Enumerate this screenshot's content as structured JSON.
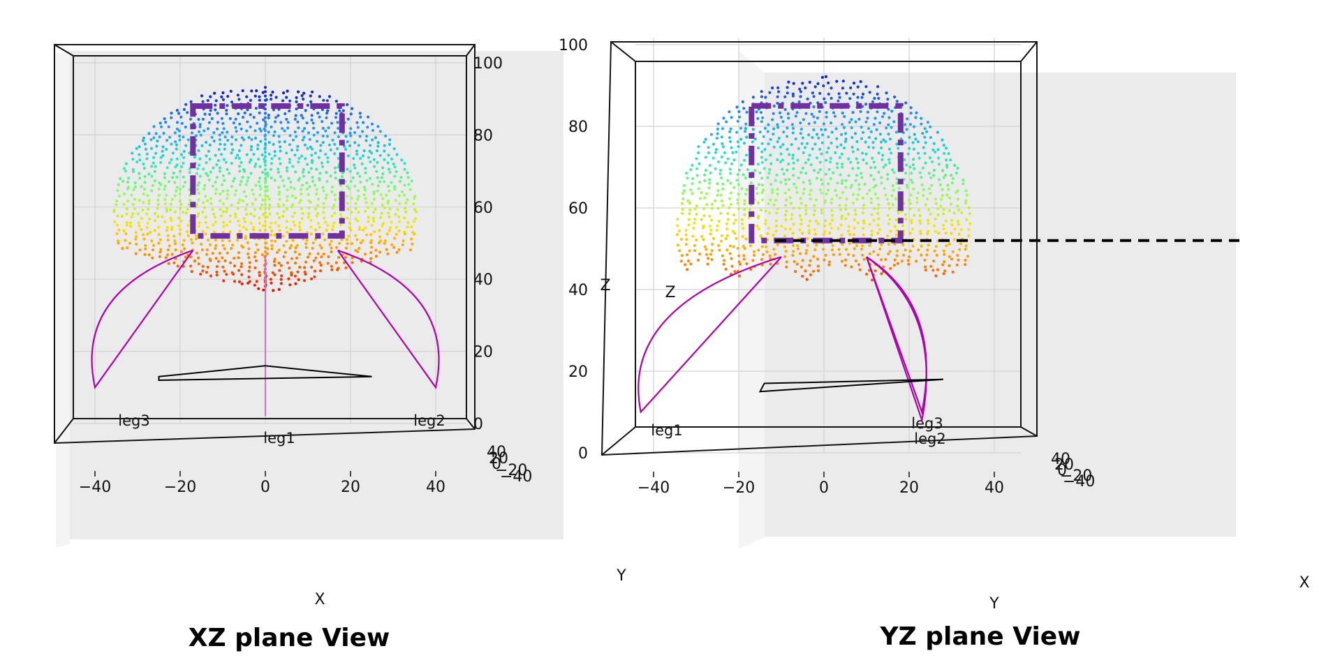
{
  "chart_data": [
    {
      "type": "scatter",
      "caption": "XZ plane View",
      "xlabel": "X",
      "zlabel": "Z",
      "depth_axis_label": "Y",
      "x_ticks": [
        "−40",
        "−20",
        "0",
        "20",
        "40"
      ],
      "x_tick_values": [
        -40,
        -20,
        0,
        20,
        40
      ],
      "z_ticks": [
        "0",
        "20",
        "40",
        "60",
        "80",
        "100"
      ],
      "z_tick_values": [
        0,
        20,
        40,
        60,
        80,
        100
      ],
      "depth_ticks": [
        "40",
        "20",
        "0",
        "−20",
        "−40"
      ],
      "xlim": [
        -50,
        50
      ],
      "zlim": [
        0,
        100
      ],
      "grid": true,
      "colormap": [
        "#e00000",
        "#ff7a00",
        "#ffe000",
        "#8cff60",
        "#20e0d0",
        "#2090ff",
        "#1020d0"
      ],
      "workspace_points": {
        "description_z_range": [
          35,
          95
        ],
        "x_range": [
          -35,
          35
        ]
      },
      "legs": [
        {
          "name": "leg1",
          "base": [
            0,
            2
          ],
          "top": [
            0,
            48
          ]
        },
        {
          "name": "leg2",
          "base": [
            40,
            10
          ],
          "top": [
            17,
            48
          ]
        },
        {
          "name": "leg3",
          "base": [
            -40,
            10
          ],
          "top": [
            -17,
            48
          ]
        }
      ],
      "platform": [
        [
          -25,
          13
        ],
        [
          0,
          16
        ],
        [
          25,
          13
        ]
      ],
      "box": {
        "x": [
          -17,
          18
        ],
        "z": [
          52,
          88
        ],
        "color": "#7030a0"
      }
    },
    {
      "type": "scatter",
      "caption": "YZ plane View",
      "xlabel": "Y",
      "zlabel": "Z",
      "depth_axis_label": "X",
      "x_ticks": [
        "−40",
        "−20",
        "0",
        "20",
        "40"
      ],
      "x_tick_values": [
        -40,
        -20,
        0,
        20,
        40
      ],
      "z_ticks": [
        "0",
        "20",
        "40",
        "60",
        "80",
        "100"
      ],
      "z_tick_values": [
        0,
        20,
        40,
        60,
        80,
        100
      ],
      "depth_ticks": [
        "40",
        "20",
        "0",
        "−20",
        "−40"
      ],
      "xlim": [
        -50,
        50
      ],
      "zlim": [
        0,
        100
      ],
      "grid": true,
      "colormap": [
        "#e00000",
        "#ff7a00",
        "#ffe000",
        "#8cff60",
        "#20e0d0",
        "#2090ff",
        "#1020d0"
      ],
      "legs": [
        {
          "name": "leg1",
          "base": [
            -43,
            10
          ],
          "top": [
            -10,
            48
          ]
        },
        {
          "name": "leg3",
          "base": [
            23,
            10
          ],
          "top": [
            10,
            48
          ]
        },
        {
          "name": "leg2",
          "base": [
            23,
            8
          ],
          "top": [
            10,
            48
          ]
        }
      ],
      "platform": [
        [
          -14,
          17
        ],
        [
          28,
          18
        ]
      ],
      "box": {
        "x": [
          -17,
          18
        ],
        "z": [
          52,
          85
        ],
        "color": "#7030a0"
      },
      "dashed_line_z": 52
    }
  ]
}
